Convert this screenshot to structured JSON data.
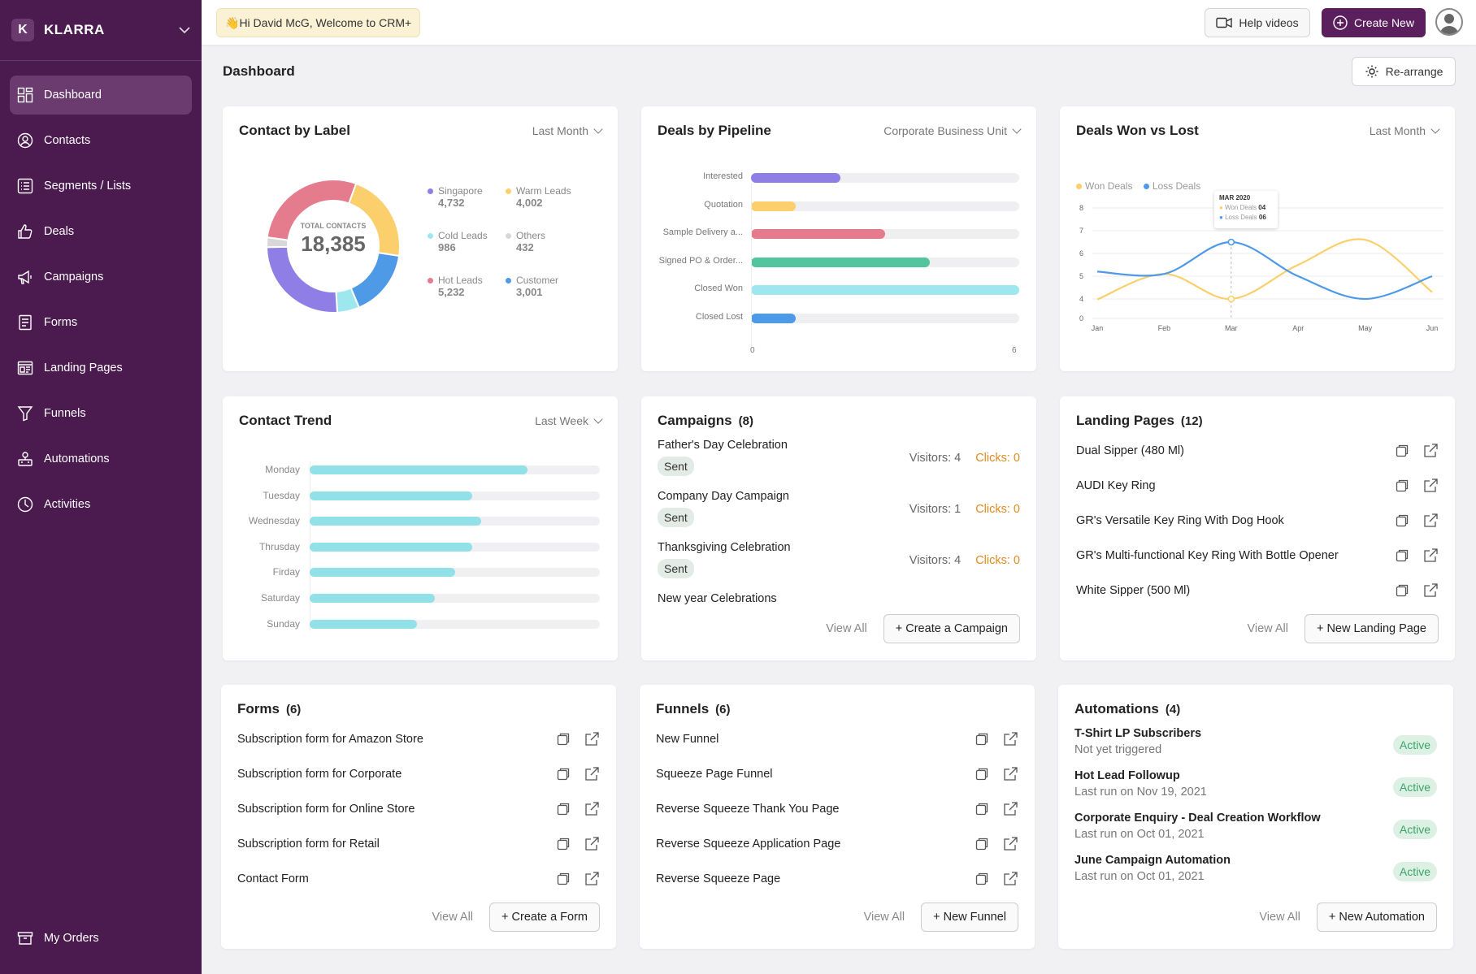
{
  "app": {
    "brand_initial": "K",
    "brand_name": "KLARRA"
  },
  "sidebar": {
    "items": [
      {
        "label": "Dashboard",
        "icon": "dashboard-icon",
        "active": true
      },
      {
        "label": "Contacts",
        "icon": "contacts-icon"
      },
      {
        "label": "Segments / Lists",
        "icon": "list-icon"
      },
      {
        "label": "Deals",
        "icon": "thumbs-up-icon"
      },
      {
        "label": "Campaigns",
        "icon": "megaphone-icon"
      },
      {
        "label": "Forms",
        "icon": "form-icon"
      },
      {
        "label": "Landing Pages",
        "icon": "landing-page-icon"
      },
      {
        "label": "Funnels",
        "icon": "funnel-icon"
      },
      {
        "label": "Automations",
        "icon": "automation-icon"
      },
      {
        "label": "Activities",
        "icon": "clock-icon"
      }
    ],
    "bottom": {
      "label": "My Orders",
      "icon": "orders-icon"
    }
  },
  "topbar": {
    "welcome": "Hi David McG, Welcome to CRM+",
    "welcome_emoji": "👋",
    "help_label": "Help videos",
    "create_label": "Create New"
  },
  "page": {
    "title": "Dashboard",
    "rearrange_label": "Re-arrange"
  },
  "contact_by_label": {
    "title": "Contact by Label",
    "filter": "Last Month",
    "total_label": "TOTAL CONTACTS",
    "total_value": "18,385",
    "legend": [
      {
        "name": "Singapore",
        "value": "4,732",
        "color": "#8f7ee6"
      },
      {
        "name": "Warm Leads",
        "value": "4,002",
        "color": "#fbcf6b"
      },
      {
        "name": "Cold Leads",
        "value": "986",
        "color": "#9ee7ee"
      },
      {
        "name": "Others",
        "value": "432",
        "color": "#d8d8d8"
      },
      {
        "name": "Hot Leads",
        "value": "5,232",
        "color": "#e57c8e"
      },
      {
        "name": "Customer",
        "value": "3,001",
        "color": "#4e9ae6"
      }
    ]
  },
  "deals_by_pipeline": {
    "title": "Deals by Pipeline",
    "filter": "Corporate Business Unit",
    "axis_min": "0",
    "axis_max": "6"
  },
  "deals_won_lost": {
    "title": "Deals Won vs Lost",
    "filter": "Last Month",
    "tooltip": {
      "title": "MAR 2020",
      "won": "Won Deals",
      "won_val": "04",
      "lost": "Loss Deals",
      "lost_val": "06"
    }
  },
  "chart_data": [
    {
      "type": "pie",
      "title": "Contact by Label",
      "categories": [
        "Singapore",
        "Warm Leads",
        "Cold Leads",
        "Others",
        "Hot Leads",
        "Customer"
      ],
      "values": [
        4732,
        4002,
        986,
        432,
        5232,
        3001
      ]
    },
    {
      "type": "bar",
      "title": "Deals by Pipeline",
      "categories": [
        "Interested",
        "Quotation",
        "Sample Delivery a...",
        "Signed PO & Order...",
        "Closed Won",
        "Closed Lost"
      ],
      "values": [
        2,
        1,
        3,
        4,
        6,
        1
      ],
      "colors": [
        "#8f7ee6",
        "#fbcf6b",
        "#e57c8e",
        "#52c59e",
        "#9ee7ee",
        "#4e9ae6"
      ],
      "xlim": [
        0,
        6
      ]
    },
    {
      "type": "line",
      "title": "Deals Won vs Lost",
      "categories": [
        "Jan",
        "Feb",
        "Mar",
        "Apr",
        "May",
        "Jun"
      ],
      "y_ticks": [
        "0",
        "4",
        "5",
        "6",
        "7",
        "8"
      ],
      "series": [
        {
          "name": "Won Deals",
          "color": "#fbcf6b",
          "values": [
            3.9,
            5.1,
            4.0,
            5.5,
            6.6,
            4.3
          ]
        },
        {
          "name": "Loss Deals",
          "color": "#4e9ae6",
          "values": [
            5.2,
            5.1,
            6.5,
            5.0,
            4.0,
            5.0
          ]
        }
      ]
    },
    {
      "type": "bar",
      "title": "Contact Trend",
      "categories": [
        "Monday",
        "Tuesday",
        "Wednesday",
        "Thrusday",
        "Firday",
        "Saturday",
        "Sunday"
      ],
      "values": [
        0.75,
        0.56,
        0.59,
        0.56,
        0.5,
        0.43,
        0.37
      ]
    }
  ],
  "contact_trend": {
    "title": "Contact Trend",
    "filter": "Last Week"
  },
  "campaigns": {
    "title": "Campaigns",
    "count": "(8)",
    "items": [
      {
        "name": "Father's Day Celebration",
        "status": "Sent",
        "visitors": "Visitors: 4",
        "clicks": "Clicks: 0"
      },
      {
        "name": "Company Day Campaign",
        "status": "Sent",
        "visitors": "Visitors: 1",
        "clicks": "Clicks: 0"
      },
      {
        "name": "Thanksgiving Celebration",
        "status": "Sent",
        "visitors": "Visitors: 4",
        "clicks": "Clicks: 0"
      },
      {
        "name": "New year Celebrations"
      }
    ],
    "view_all": "View All",
    "action": "+ Create a Campaign"
  },
  "landing_pages": {
    "title": "Landing Pages",
    "count": "(12)",
    "items": [
      "Dual Sipper (480 Ml)",
      "AUDI Key Ring",
      "GR's Versatile Key Ring With Dog Hook",
      "GR's Multi-functional Key Ring With Bottle Opener",
      "White Sipper (500 Ml)"
    ],
    "view_all": "View All",
    "action": "+ New Landing Page"
  },
  "forms": {
    "title": "Forms",
    "count": "(6)",
    "items": [
      "Subscription form for Amazon Store",
      "Subscription form for Corporate",
      "Subscription form for Online Store",
      "Subscription form for Retail",
      "Contact Form"
    ],
    "view_all": "View All",
    "action": "+ Create a Form"
  },
  "funnels": {
    "title": "Funnels",
    "count": "(6)",
    "items": [
      "New Funnel",
      "Squeeze Page Funnel",
      "Reverse Squeeze Thank You Page",
      "Reverse Squeeze Application Page",
      "Reverse Squeeze Page"
    ],
    "view_all": "View All",
    "action": "+ New Funnel"
  },
  "automations": {
    "title": "Automations",
    "count": "(4)",
    "items": [
      {
        "name": "T-Shirt LP Subscribers",
        "sub": "Not yet triggered",
        "status": "Active"
      },
      {
        "name": "Hot Lead Followup",
        "sub": "Last run on Nov 19, 2021",
        "status": "Active"
      },
      {
        "name": "Corporate Enquiry - Deal Creation Workflow",
        "sub": "Last run on Oct 01, 2021",
        "status": "Active"
      },
      {
        "name": "June Campaign Automation",
        "sub": "Last run on Oct 01, 2021",
        "status": "Active"
      }
    ],
    "view_all": "View All",
    "action": "+ New Automation"
  }
}
